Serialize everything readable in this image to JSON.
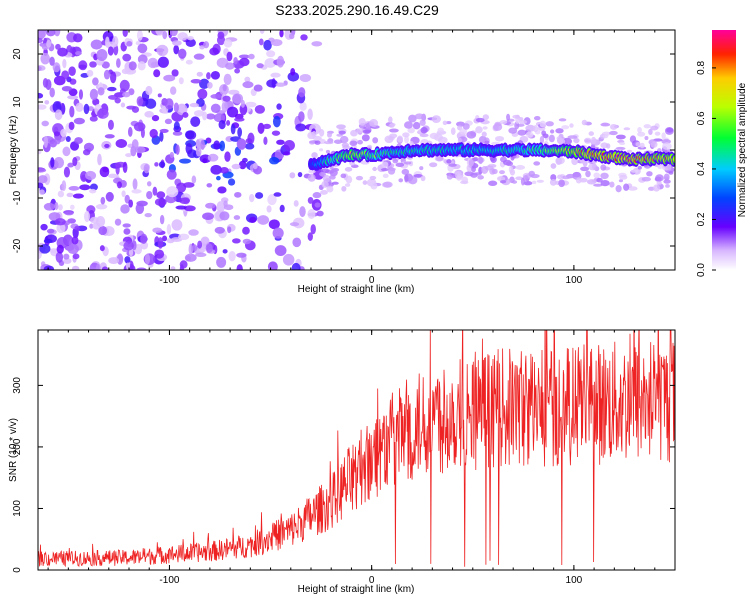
{
  "title": "S233.2025.290.16.49.C29",
  "chart_data": [
    {
      "type": "heatmap",
      "id": "spectrogram",
      "xlabel": "Height of straight line (km)",
      "ylabel": "Frequency (Hz)",
      "xlim": [
        -165,
        150
      ],
      "ylim": [
        -25,
        25
      ],
      "xticks": [
        -100,
        0,
        100
      ],
      "xtick_labels": [
        "-100",
        "0",
        "100"
      ],
      "yticks": [
        -20,
        -10,
        0,
        10,
        20
      ],
      "ytick_labels": [
        "-20",
        "-10",
        "0",
        "10",
        "20"
      ],
      "colorbar": {
        "label": "Normalized spectral amplitude",
        "range": [
          0.0,
          0.95
        ],
        "ticks": [
          0.0,
          0.2,
          0.4,
          0.6,
          0.8
        ],
        "tick_labels": [
          "0.0",
          "0.2",
          "0.4",
          "0.6",
          "0.8"
        ],
        "colormap": "rainbow"
      },
      "ridge": {
        "x": [
          -30,
          -20,
          -10,
          0,
          10,
          20,
          40,
          60,
          80,
          100,
          110,
          120,
          130,
          140,
          150
        ],
        "frequency": [
          -3,
          -2,
          -1,
          -1,
          -0.5,
          0,
          0,
          0,
          0,
          -0.3,
          -1,
          -1.5,
          -2,
          -1.8,
          -2
        ],
        "amplitude": [
          0.3,
          0.55,
          0.7,
          0.6,
          0.5,
          0.5,
          0.45,
          0.45,
          0.55,
          0.75,
          0.85,
          0.85,
          0.85,
          0.8,
          0.8
        ]
      },
      "noise_region": {
        "x": [
          -165,
          -30
        ],
        "frequency_spread": [
          -25,
          25
        ]
      }
    },
    {
      "type": "line",
      "id": "snr",
      "xlabel": "Height of straight line (km)",
      "ylabel": "SNR (10 * v/v)",
      "xlim": [
        -165,
        150
      ],
      "ylim": [
        0,
        390
      ],
      "xticks": [
        -100,
        0,
        100
      ],
      "xtick_labels": [
        "-100",
        "0",
        "100"
      ],
      "yticks": [
        0,
        100,
        200,
        300
      ],
      "ytick_labels": [
        "0",
        "100",
        "200",
        "300"
      ],
      "color": "#ee2222",
      "trend": {
        "x": [
          -165,
          -120,
          -100,
          -80,
          -60,
          -40,
          -20,
          -10,
          0,
          10,
          20,
          30,
          40,
          60,
          80,
          100,
          120,
          140,
          150
        ],
        "y": [
          18,
          20,
          25,
          30,
          40,
          65,
          110,
          150,
          185,
          210,
          230,
          245,
          255,
          262,
          265,
          268,
          272,
          276,
          275
        ]
      },
      "spikes": [
        {
          "x": 3,
          "y": 295
        },
        {
          "x": 148,
          "y": 385
        }
      ],
      "dropout_range": [
        -10,
        112
      ]
    }
  ]
}
